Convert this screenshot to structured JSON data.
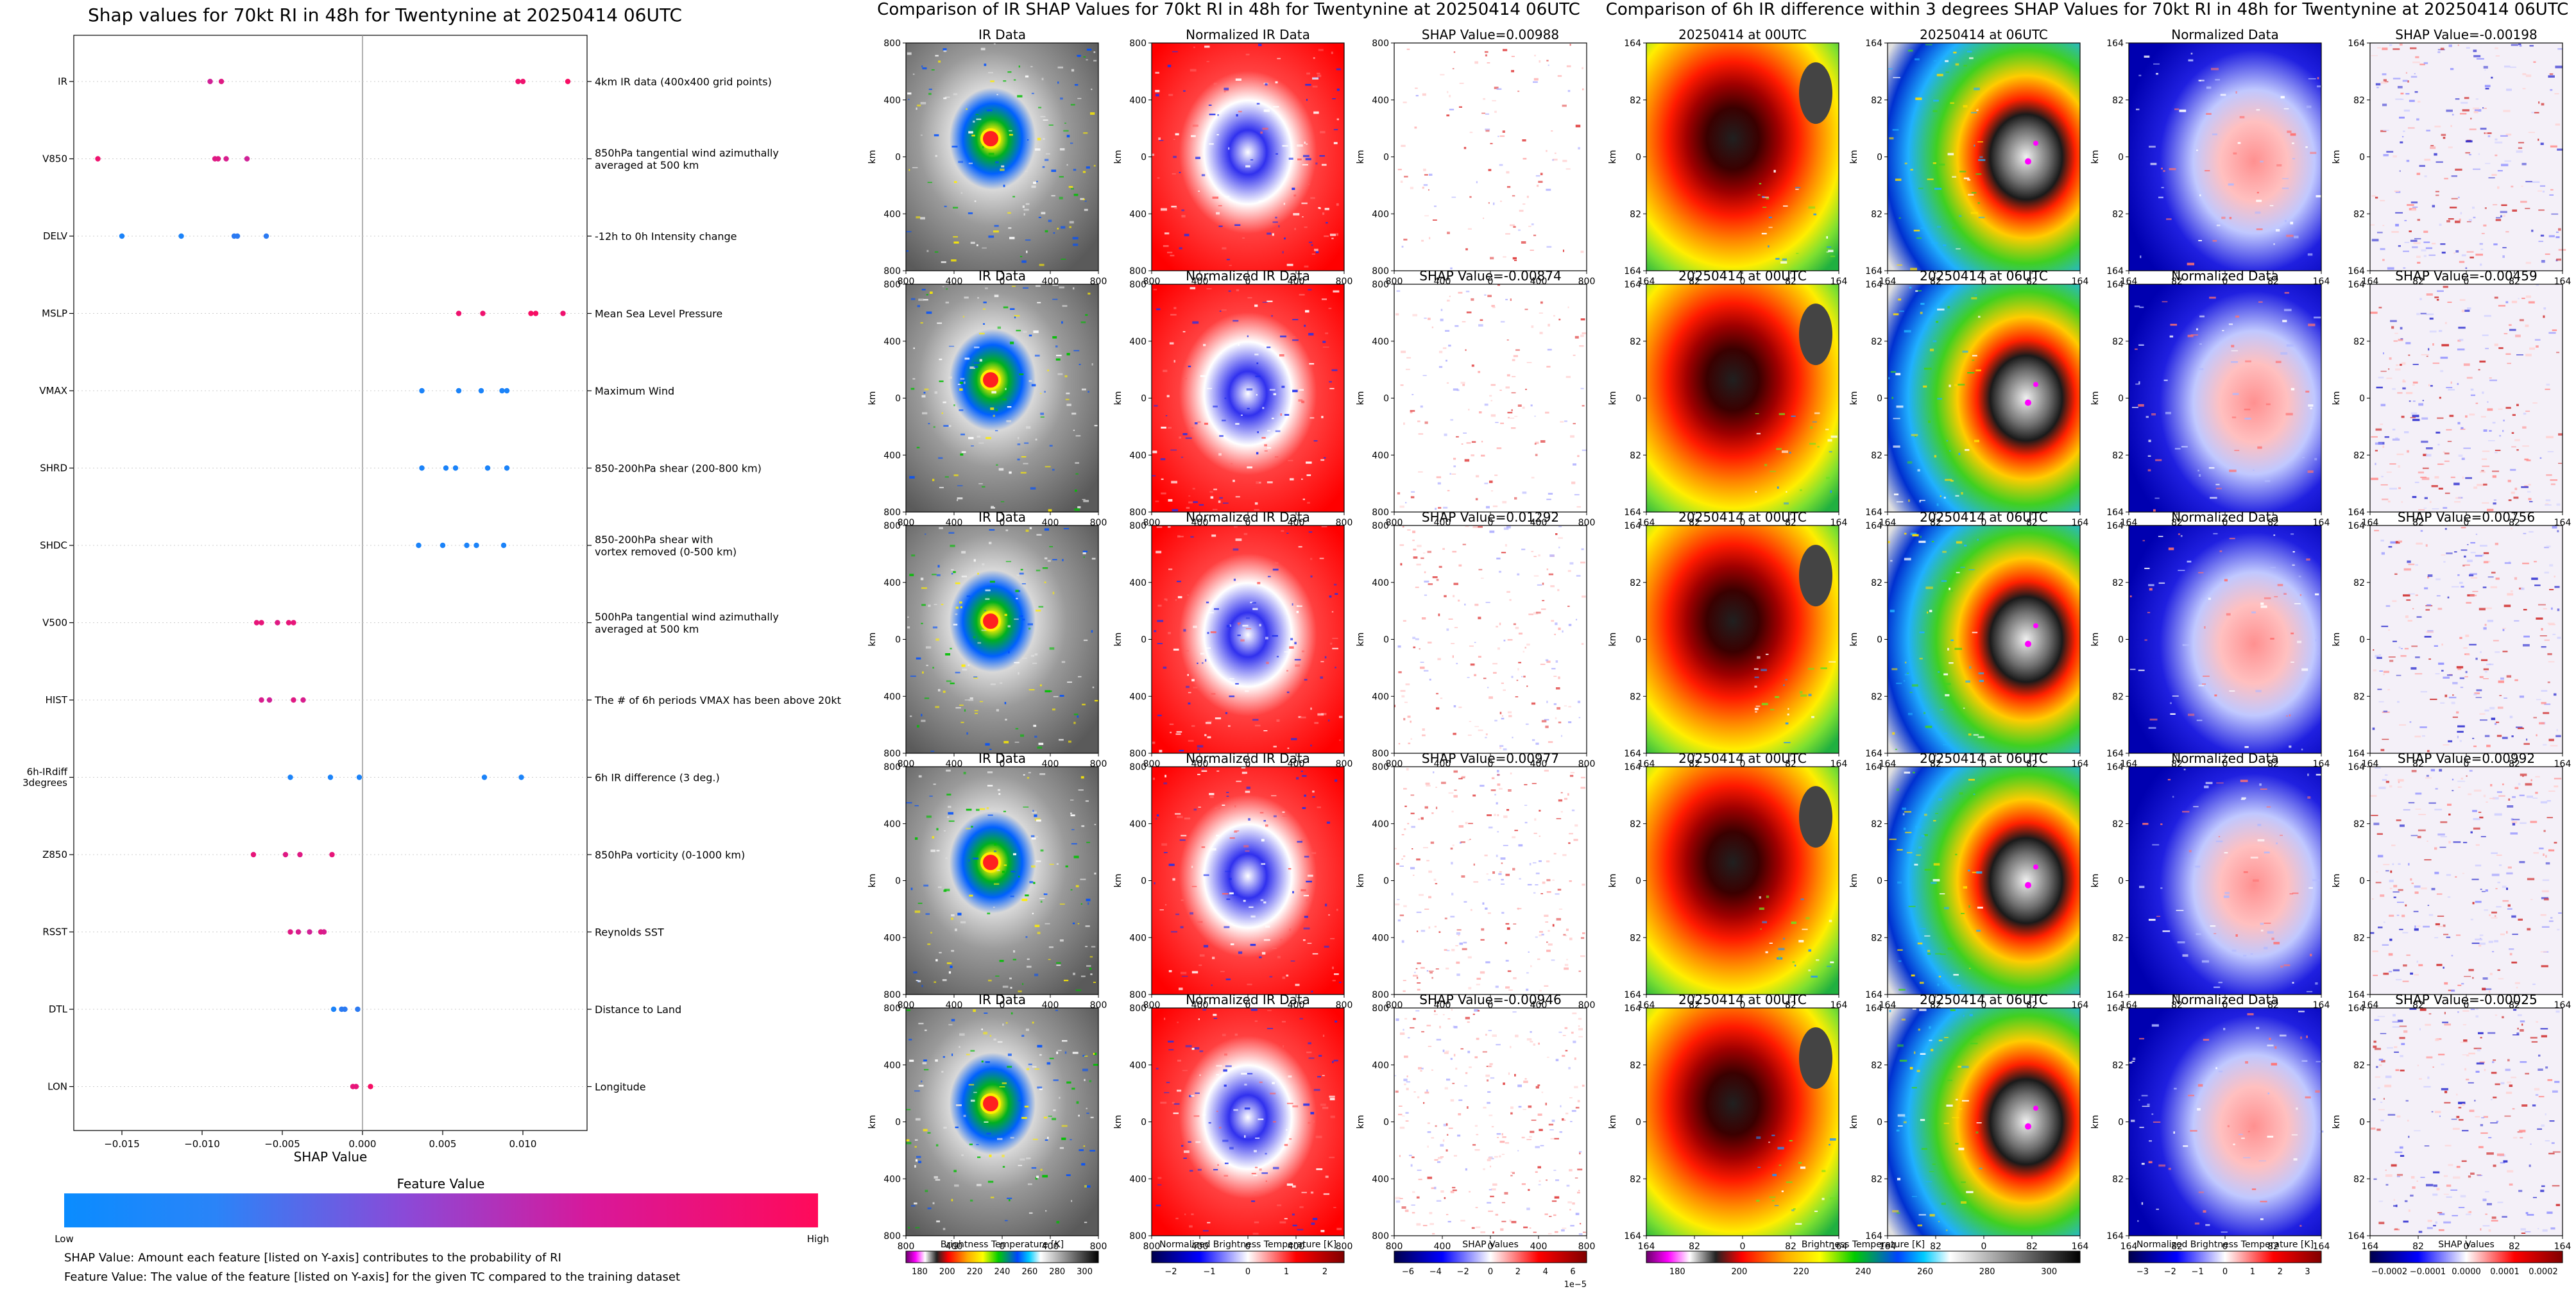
{
  "colors": {
    "feature_low": "#1e88ff",
    "feature_mid": "#b030c0",
    "feature_high": "#ff0a5a",
    "ir_red": "#ff1a1a",
    "shap_pos": "#cc1010",
    "shap_neg": "#1010cc"
  },
  "left_panel": {
    "title": "Shap values for 70kt RI in 48h for Twentynine at 20250414 06UTC",
    "xlabel": "SHAP Value",
    "colorbar": {
      "title": "Feature Value",
      "low": "Low",
      "high": "High"
    },
    "notes": [
      "SHAP Value: Amount each feature [listed on Y-axis] contributes to the probability of RI",
      "Feature Value: The value of the feature [listed on Y-axis] for the given TC compared to the training dataset"
    ]
  },
  "middle_panel": {
    "title": "Comparison of IR SHAP Values for 70kt RI in 48h for Twentynine at 20250414 06UTC",
    "col_titles": [
      "IR Data",
      "Normalized IR Data"
    ],
    "shap_titles": [
      "SHAP Value=0.00988",
      "SHAP Value=-0.00874",
      "SHAP Value=0.01292",
      "SHAP Value=0.00977",
      "SHAP Value=-0.00946"
    ],
    "axis_unit": "km",
    "xticks": [
      "800",
      "400",
      "0",
      "400",
      "800"
    ],
    "yticks": [
      "800",
      "400",
      "0",
      "400",
      "800"
    ],
    "colorbars": [
      {
        "label": "Brightness Temperature [K]",
        "ticks": [
          "180",
          "200",
          "220",
          "240",
          "260",
          "280",
          "300"
        ]
      },
      {
        "label": "Normalized Brightness Temperature [K]",
        "ticks": [
          "−2",
          "−1",
          "0",
          "1",
          "2"
        ]
      },
      {
        "label": "SHAP Values",
        "ticks": [
          "−6",
          "−4",
          "−2",
          "0",
          "2",
          "4",
          "6"
        ],
        "exponent": "1e−5"
      }
    ]
  },
  "right_panel": {
    "title": "Comparison of 6h IR difference within 3 degrees SHAP Values for 70kt RI in 48h for Twentynine at 20250414 06UTC",
    "col_titles": [
      "20250414 at 00UTC",
      "20250414 at 06UTC",
      "Normalized Data"
    ],
    "shap_titles": [
      "SHAP Value=-0.00198",
      "SHAP Value=-0.00459",
      "SHAP Value=0.00756",
      "SHAP Value=0.00992",
      "SHAP Value=-0.00025"
    ],
    "axis_unit": "km",
    "xticks": [
      "164",
      "82",
      "0",
      "82",
      "164"
    ],
    "yticks": [
      "164",
      "82",
      "0",
      "82",
      "164"
    ],
    "colorbars": [
      {
        "label": "Brightness Temperature [K]",
        "ticks": [
          "180",
          "200",
          "220",
          "240",
          "260",
          "280",
          "300"
        ]
      },
      {
        "label": "Normalized Brightness Temperature [K]",
        "ticks": [
          "−3",
          "−2",
          "−1",
          "0",
          "1",
          "2",
          "3"
        ]
      },
      {
        "label": "SHAP Values",
        "ticks": [
          "−0.0002",
          "−0.0001",
          "0.0000",
          "0.0001",
          "0.0002"
        ]
      }
    ]
  },
  "chart_data": [
    {
      "type": "scatter",
      "title": "Shap values for 70kt RI in 48h for Twentynine at 20250414 06UTC",
      "xlabel": "SHAP Value",
      "xlim": [
        -0.018,
        0.014
      ],
      "xticks": [
        "−0.015",
        "−0.010",
        "−0.005",
        "0.000",
        "0.005",
        "0.010"
      ],
      "grid": false,
      "features": [
        {
          "name": "IR",
          "description": "4km IR data (400x400 grid points)",
          "points": [
            [
              -0.0095,
              0.7
            ],
            [
              -0.0088,
              0.8
            ],
            [
              0.0097,
              0.9
            ],
            [
              0.01,
              0.9
            ],
            [
              0.0128,
              0.95
            ]
          ]
        },
        {
          "name": "V850",
          "description": "850hPa tangential wind azimuthally\naveraged at 500 km",
          "points": [
            [
              -0.0165,
              0.9
            ],
            [
              -0.0092,
              0.8
            ],
            [
              -0.009,
              0.8
            ],
            [
              -0.0085,
              0.75
            ],
            [
              -0.0072,
              0.7
            ]
          ]
        },
        {
          "name": "DELV",
          "description": "-12h to 0h Intensity change",
          "points": [
            [
              -0.015,
              0.05
            ],
            [
              -0.0113,
              0.05
            ],
            [
              -0.008,
              0.1
            ],
            [
              -0.0078,
              0.1
            ],
            [
              -0.006,
              0.1
            ]
          ]
        },
        {
          "name": "MSLP",
          "description": "Mean Sea Level Pressure",
          "points": [
            [
              0.006,
              0.9
            ],
            [
              0.0075,
              0.9
            ],
            [
              0.0105,
              0.95
            ],
            [
              0.0108,
              0.95
            ],
            [
              0.0125,
              0.9
            ]
          ]
        },
        {
          "name": "VMAX",
          "description": "Maximum Wind",
          "points": [
            [
              0.0037,
              0.05
            ],
            [
              0.006,
              0.05
            ],
            [
              0.0074,
              0.05
            ],
            [
              0.0087,
              0.05
            ],
            [
              0.009,
              0.05
            ]
          ]
        },
        {
          "name": "SHRD",
          "description": "850-200hPa shear (200-800 km)",
          "points": [
            [
              0.0037,
              0.05
            ],
            [
              0.0052,
              0.05
            ],
            [
              0.0058,
              0.05
            ],
            [
              0.0078,
              0.05
            ],
            [
              0.009,
              0.05
            ]
          ]
        },
        {
          "name": "SHDC",
          "description": "850-200hPa shear with\nvortex removed (0-500 km)",
          "points": [
            [
              0.0035,
              0.05
            ],
            [
              0.005,
              0.05
            ],
            [
              0.0065,
              0.05
            ],
            [
              0.0071,
              0.05
            ],
            [
              0.0088,
              0.05
            ]
          ]
        },
        {
          "name": "V500",
          "description": "500hPa tangential wind azimuthally\naveraged at 500 km",
          "points": [
            [
              -0.0066,
              0.85
            ],
            [
              -0.0063,
              0.85
            ],
            [
              -0.0053,
              0.8
            ],
            [
              -0.0046,
              0.85
            ],
            [
              -0.0043,
              0.85
            ]
          ]
        },
        {
          "name": "HIST",
          "description": "The # of 6h periods VMAX has been above 20kt",
          "points": [
            [
              -0.0063,
              0.75
            ],
            [
              -0.0058,
              0.7
            ],
            [
              -0.0043,
              0.8
            ],
            [
              -0.0037,
              0.75
            ]
          ]
        },
        {
          "name": "6h-IRdiff\n3degrees",
          "description": "6h IR difference (3 deg.)",
          "points": [
            [
              -0.0045,
              0.05
            ],
            [
              -0.002,
              0.05
            ],
            [
              -0.0002,
              0.05
            ],
            [
              0.0076,
              0.05
            ],
            [
              0.0099,
              0.05
            ]
          ]
        },
        {
          "name": "Z850",
          "description": "850hPa vorticity (0-1000 km)",
          "points": [
            [
              -0.0068,
              0.85
            ],
            [
              -0.0048,
              0.8
            ],
            [
              -0.0039,
              0.8
            ],
            [
              -0.0019,
              0.85
            ]
          ]
        },
        {
          "name": "RSST",
          "description": "Reynolds SST",
          "points": [
            [
              -0.0045,
              0.8
            ],
            [
              -0.004,
              0.75
            ],
            [
              -0.0033,
              0.7
            ],
            [
              -0.0026,
              0.8
            ],
            [
              -0.0024,
              0.75
            ]
          ]
        },
        {
          "name": "DTL",
          "description": "Distance to Land",
          "points": [
            [
              -0.0018,
              0.05
            ],
            [
              -0.0013,
              0.1
            ],
            [
              -0.0011,
              0.1
            ],
            [
              -0.0003,
              0.1
            ]
          ]
        },
        {
          "name": "LON",
          "description": "Longitude",
          "points": [
            [
              -0.0006,
              0.85
            ],
            [
              -0.0004,
              0.85
            ],
            [
              0.0005,
              0.95
            ]
          ]
        }
      ]
    },
    {
      "type": "heatmap",
      "title": "Comparison of IR SHAP Values for 70kt RI in 48h for Twentynine at 20250414 06UTC",
      "shap_values": [
        0.00988,
        -0.00874,
        0.01292,
        0.00977,
        -0.00946
      ]
    },
    {
      "type": "heatmap",
      "title": "Comparison of 6h IR difference within 3 degrees SHAP Values for 70kt RI in 48h for Twentynine at 20250414 06UTC",
      "shap_values": [
        -0.00198,
        -0.00459,
        0.00756,
        0.00992,
        -0.00025
      ]
    }
  ]
}
